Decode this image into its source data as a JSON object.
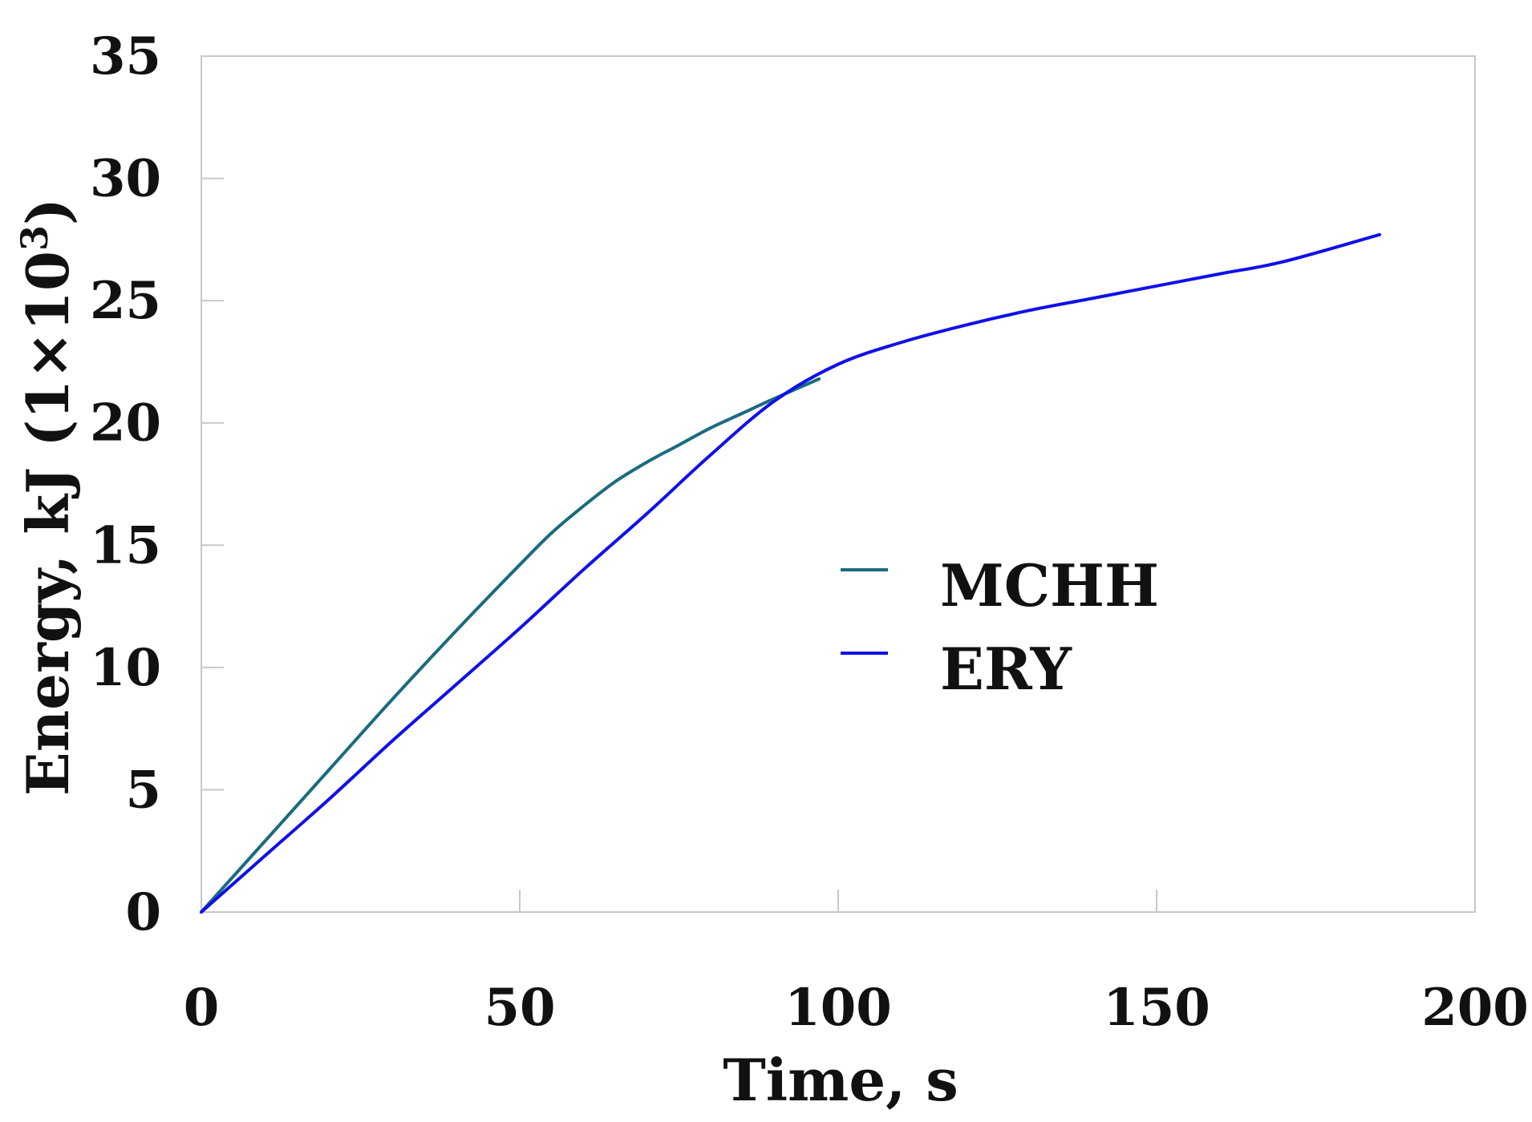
{
  "chart_data": {
    "type": "line",
    "title": "",
    "xlabel": "Time, s",
    "ylabel": "Energy, kJ (1×10",
    "ylabel_sup": "3",
    "ylabel_end": ")",
    "xlim": [
      0,
      200
    ],
    "ylim": [
      0,
      35
    ],
    "xticks": [
      "0",
      "50",
      "100",
      "150",
      "200"
    ],
    "yticks": [
      "0",
      "5",
      "10",
      "15",
      "20",
      "25",
      "30",
      "35"
    ],
    "grid": false,
    "legend_position": "center-right",
    "series": [
      {
        "name": "MCHH",
        "color": "#1a6b7f",
        "x": [
          0,
          10,
          20,
          30,
          40,
          50,
          55,
          60,
          65,
          70,
          75,
          80,
          85,
          90,
          97
        ],
        "y": [
          0,
          2.9,
          5.8,
          8.7,
          11.5,
          14.2,
          15.5,
          16.6,
          17.6,
          18.4,
          19.1,
          19.8,
          20.4,
          21.0,
          21.8
        ]
      },
      {
        "name": "ERY",
        "color": "#1010e8",
        "x": [
          0,
          10,
          20,
          30,
          40,
          50,
          60,
          70,
          80,
          90,
          100,
          110,
          120,
          130,
          140,
          150,
          160,
          170,
          185
        ],
        "y": [
          0,
          2.3,
          4.6,
          7.0,
          9.3,
          11.6,
          14.0,
          16.3,
          18.7,
          20.9,
          22.4,
          23.3,
          24.0,
          24.6,
          25.1,
          25.6,
          26.1,
          26.6,
          27.7
        ]
      }
    ]
  }
}
